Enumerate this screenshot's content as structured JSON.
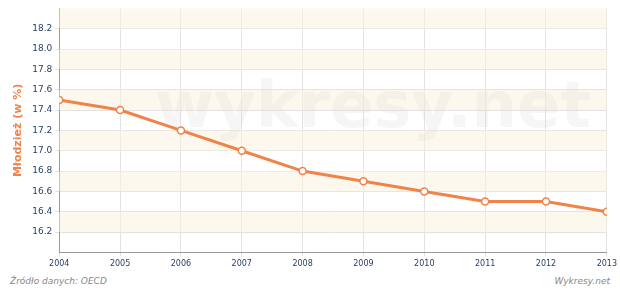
{
  "chart_data": {
    "type": "line",
    "y_label": "Młodzież (w %)",
    "source": "Źródło danych: OECD",
    "credit": "Wykresy.net",
    "watermark": "wykresy.net",
    "categories": [
      "2004",
      "2005",
      "2006",
      "2007",
      "2008",
      "2009",
      "2010",
      "2011",
      "2012",
      "2013"
    ],
    "values": [
      17.5,
      17.4,
      17.2,
      17.0,
      16.8,
      16.7,
      16.6,
      16.5,
      16.5,
      16.4
    ],
    "color": "#f0834a",
    "marker": "circle",
    "line_style": "solid",
    "ylim": [
      16.0,
      18.4
    ],
    "yticks": [
      16.2,
      16.4,
      16.6,
      16.8,
      {
        "value": 17,
        "label": "17.0"
      },
      17.2,
      17.4,
      17.6,
      17.8,
      {
        "value": 18,
        "label": "18.0"
      },
      18.2
    ],
    "grid": true
  }
}
